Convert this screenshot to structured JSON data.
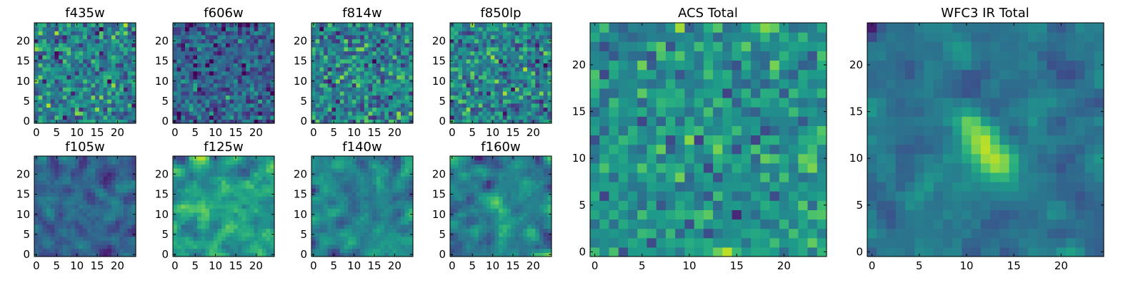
{
  "chart_data": [
    {
      "id": "p1",
      "type": "heatmap",
      "title": "f435w",
      "colormap": "viridis",
      "grid_size": 25,
      "xlim": [
        -0.5,
        24.5
      ],
      "ylim": [
        -0.5,
        24.5
      ],
      "xticks": [
        0,
        5,
        10,
        15,
        20
      ],
      "yticks": [
        0,
        5,
        10,
        15,
        20
      ],
      "structure": "noise",
      "seed": 11
    },
    {
      "id": "p2",
      "type": "heatmap",
      "title": "f606w",
      "colormap": "viridis",
      "grid_size": 25,
      "xlim": [
        -0.5,
        24.5
      ],
      "ylim": [
        -0.5,
        24.5
      ],
      "xticks": [
        0,
        5,
        10,
        15,
        20
      ],
      "yticks": [
        0,
        5,
        10,
        15,
        20
      ],
      "structure": "noise-dark",
      "seed": 23
    },
    {
      "id": "p3",
      "type": "heatmap",
      "title": "f814w",
      "colormap": "viridis",
      "grid_size": 25,
      "xlim": [
        -0.5,
        24.5
      ],
      "ylim": [
        -0.5,
        24.5
      ],
      "xticks": [
        0,
        5,
        10,
        15,
        20
      ],
      "yticks": [
        0,
        5,
        10,
        15,
        20
      ],
      "structure": "noise",
      "seed": 37
    },
    {
      "id": "p4",
      "type": "heatmap",
      "title": "f850lp",
      "colormap": "viridis",
      "grid_size": 25,
      "xlim": [
        -0.5,
        24.5
      ],
      "ylim": [
        -0.5,
        24.5
      ],
      "xticks": [
        0,
        5,
        10,
        15,
        20
      ],
      "yticks": [
        0,
        5,
        10,
        15,
        20
      ],
      "structure": "noise",
      "seed": 41
    },
    {
      "id": "p5",
      "type": "heatmap",
      "title": "f105w",
      "colormap": "viridis",
      "grid_size": 25,
      "xlim": [
        -0.5,
        24.5
      ],
      "ylim": [
        -0.5,
        24.5
      ],
      "xticks": [
        0,
        5,
        10,
        15,
        20
      ],
      "yticks": [
        0,
        5,
        10,
        15,
        20
      ],
      "structure": "smooth-dark",
      "seed": 53
    },
    {
      "id": "p6",
      "type": "heatmap",
      "title": "f125w",
      "colormap": "viridis",
      "grid_size": 25,
      "xlim": [
        -0.5,
        24.5
      ],
      "ylim": [
        -0.5,
        24.5
      ],
      "xticks": [
        0,
        5,
        10,
        15,
        20
      ],
      "yticks": [
        0,
        5,
        10,
        15,
        20
      ],
      "structure": "smooth-bright",
      "seed": 67
    },
    {
      "id": "p7",
      "type": "heatmap",
      "title": "f140w",
      "colormap": "viridis",
      "grid_size": 25,
      "xlim": [
        -0.5,
        24.5
      ],
      "ylim": [
        -0.5,
        24.5
      ],
      "xticks": [
        0,
        5,
        10,
        15,
        20
      ],
      "yticks": [
        0,
        5,
        10,
        15,
        20
      ],
      "structure": "smooth",
      "seed": 71
    },
    {
      "id": "p8",
      "type": "heatmap",
      "title": "f160w",
      "colormap": "viridis",
      "grid_size": 25,
      "xlim": [
        -0.5,
        24.5
      ],
      "ylim": [
        -0.5,
        24.5
      ],
      "xticks": [
        0,
        5,
        10,
        15,
        20
      ],
      "yticks": [
        0,
        5,
        10,
        15,
        20
      ],
      "structure": "smooth-source",
      "seed": 83
    },
    {
      "id": "p9",
      "type": "heatmap",
      "title": "ACS Total",
      "colormap": "viridis",
      "grid_size": 25,
      "xlim": [
        -0.5,
        24.5
      ],
      "ylim": [
        -0.5,
        24.5
      ],
      "xticks": [
        0,
        5,
        10,
        15,
        20
      ],
      "yticks": [
        0,
        5,
        10,
        15,
        20
      ],
      "structure": "noise-mid",
      "seed": 97
    },
    {
      "id": "p10",
      "type": "heatmap",
      "title": "WFC3 IR Total",
      "colormap": "viridis",
      "grid_size": 25,
      "xlim": [
        -0.5,
        24.5
      ],
      "ylim": [
        -0.5,
        24.5
      ],
      "xticks": [
        0,
        5,
        10,
        15,
        20
      ],
      "yticks": [
        0,
        5,
        10,
        15,
        20
      ],
      "structure": "source",
      "seed": 101
    }
  ]
}
